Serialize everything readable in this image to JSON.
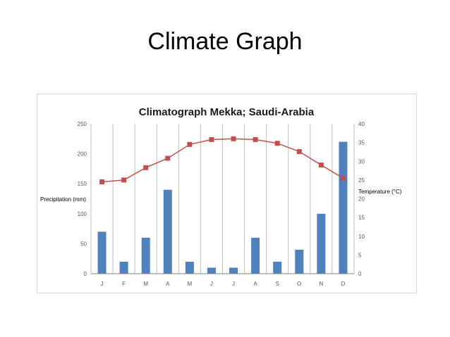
{
  "slide": {
    "title": "Climate Graph"
  },
  "colors": {
    "bars": "#4f81bd",
    "line": "#c0504d",
    "grid": "#bfbfbf"
  },
  "chart_data": {
    "type": "bar",
    "title": "Climatograph Mekka; Saudi-Arabia",
    "categories": [
      "J",
      "F",
      "M",
      "A",
      "M",
      "J",
      "J",
      "A",
      "S",
      "O",
      "N",
      "D"
    ],
    "y_left": {
      "label": "Precipitation (mm)",
      "range": [
        0,
        250
      ],
      "ticks": [
        0,
        50,
        100,
        150,
        200,
        250
      ]
    },
    "y_right": {
      "label": "Temperature (°C)",
      "range": [
        0,
        40
      ],
      "ticks": [
        0,
        5,
        10,
        15,
        20,
        25,
        30,
        35,
        40
      ]
    },
    "series": [
      {
        "type": "bar",
        "axis": "left",
        "values": [
          70,
          20,
          60,
          140,
          20,
          10,
          10,
          60,
          20,
          40,
          100,
          220
        ]
      },
      {
        "type": "line",
        "axis": "right",
        "values": [
          24.5,
          25,
          28.3,
          30.8,
          34.5,
          35.8,
          36,
          35.8,
          34.8,
          32.6,
          29,
          25.5
        ]
      }
    ],
    "grid": "vertical",
    "legend": "none"
  }
}
